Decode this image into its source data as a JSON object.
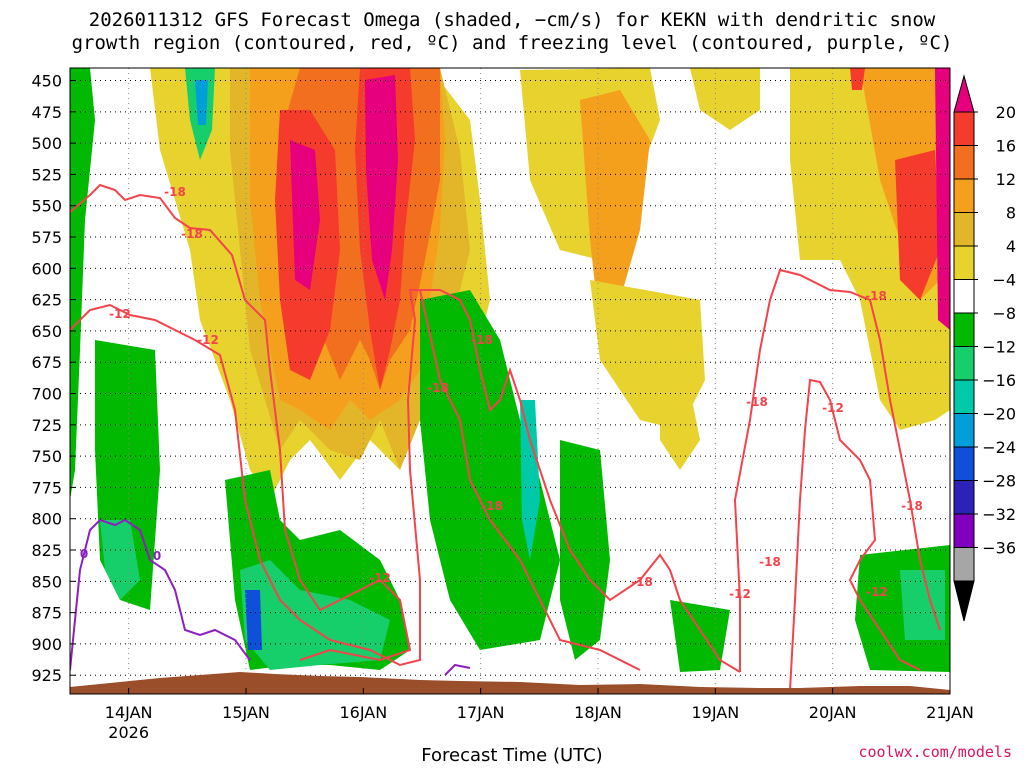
{
  "header": {
    "title_line1": "2026011312 GFS Forecast Omega (shaded, −cm/s) for KEKN with dendritic snow",
    "title_line2": "growth region (contoured, red, ºC) and freezing level (contoured, purple, ºC)"
  },
  "footer": {
    "credit": "coolwx.com/models"
  },
  "chart_data": {
    "type": "heatmap",
    "title": "2026011312 GFS Forecast Omega (shaded, −cm/s) for KEKN with dendritic snow growth region (contoured, red, ºC) and freezing level (contoured, purple, ºC)",
    "xlabel": "Forecast Time (UTC)",
    "ylabel": "",
    "x_ticks": [
      "14JAN",
      "15JAN",
      "16JAN",
      "17JAN",
      "18JAN",
      "19JAN",
      "20JAN",
      "21JAN"
    ],
    "x_year_label": "2026",
    "x_range_days": [
      13.5,
      21.0
    ],
    "y_ticks": [
      450,
      475,
      500,
      525,
      550,
      575,
      600,
      625,
      650,
      675,
      700,
      725,
      750,
      775,
      800,
      825,
      850,
      875,
      900,
      925
    ],
    "y_range_hpa": [
      440,
      940
    ],
    "grid": true,
    "colorbar": {
      "labels": [
        "20",
        "16",
        "12",
        "8",
        "4",
        "−4",
        "−8",
        "−12",
        "−16",
        "−20",
        "−24",
        "−28",
        "−32",
        "−36"
      ],
      "colors": [
        "#e6007e",
        "#f53b2c",
        "#f26f1f",
        "#f5a01d",
        "#e3b62a",
        "#e8d22e",
        "#ffffff",
        "#00b900",
        "#16cf6a",
        "#00c9aa",
        "#009fda",
        "#0f4fd9",
        "#2d22b8",
        "#7f00bd",
        "#a6a6a6",
        "#000000"
      ]
    },
    "red_contour_labels": [
      "-18",
      "-12",
      "-18",
      "-18",
      "-12",
      "-18",
      "-18",
      "-12",
      "-18",
      "-12",
      "-18",
      "-12",
      "-18",
      "-18",
      "-12",
      "-18"
    ],
    "purple_contour_labels": [
      "0",
      "0"
    ]
  }
}
